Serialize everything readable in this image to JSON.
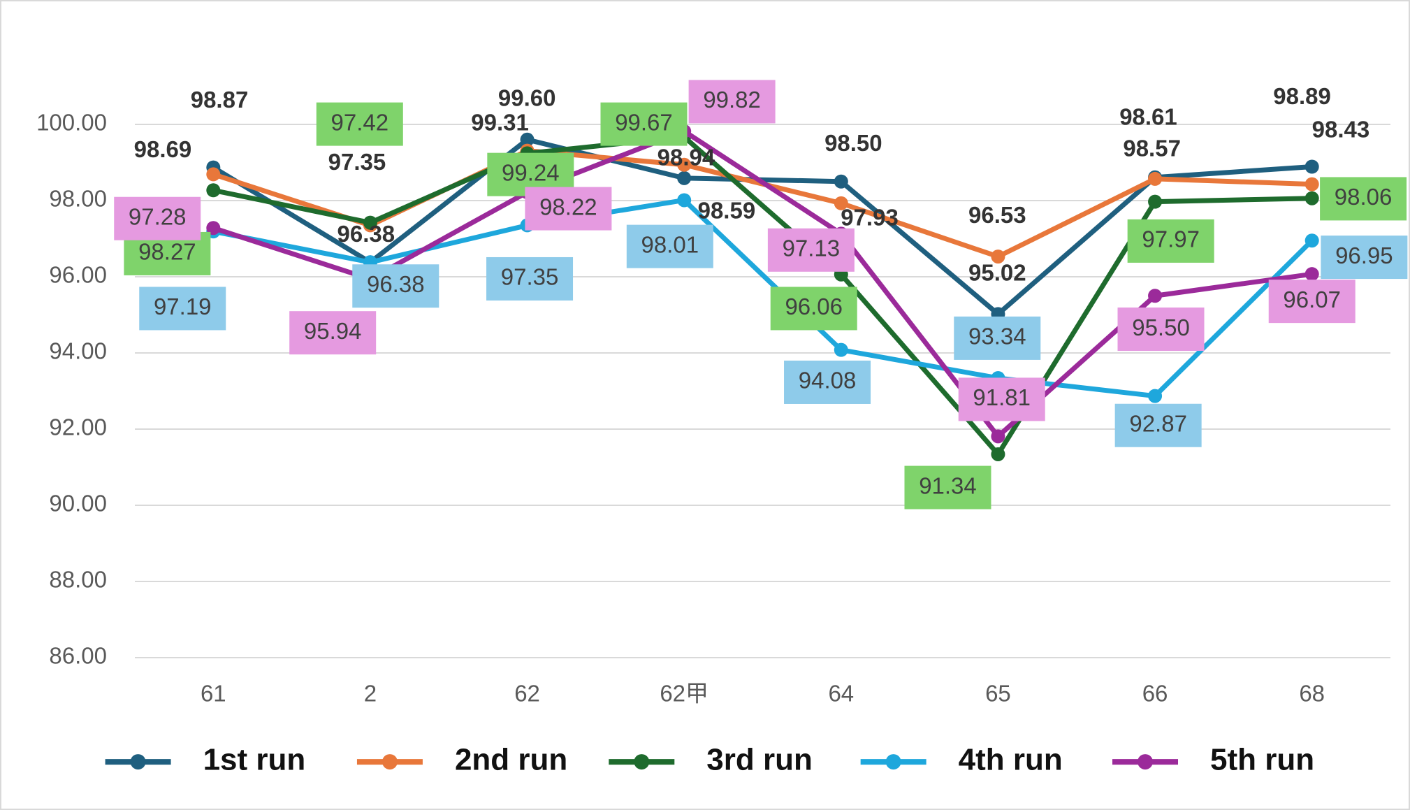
{
  "chart_data": {
    "type": "line",
    "categories": [
      "61",
      "2",
      "62",
      "62甲",
      "64",
      "65",
      "66",
      "68"
    ],
    "series": [
      {
        "name": "1st run",
        "color": "#1f5f7f",
        "values": [
          98.87,
          96.38,
          99.6,
          98.59,
          98.5,
          95.02,
          98.61,
          98.89
        ],
        "value_labels": [
          "98.87",
          "96.38",
          "99.60",
          "98.59",
          "98.50",
          "95.02",
          "98.61",
          "98.89"
        ]
      },
      {
        "name": "2nd run",
        "color": "#e8773a",
        "values": [
          98.69,
          97.35,
          99.31,
          98.94,
          97.93,
          96.53,
          98.57,
          98.43
        ],
        "value_labels": [
          "98.69",
          "97.35",
          "99.31",
          "98.94",
          "97.93",
          "96.53",
          "98.57",
          "98.43"
        ]
      },
      {
        "name": "3rd run",
        "color": "#1e6b2d",
        "label_box": "#7fd36b",
        "values": [
          98.27,
          97.42,
          99.24,
          99.67,
          96.06,
          91.34,
          97.97,
          98.06
        ],
        "value_labels": [
          "98.27",
          "97.42",
          "99.24",
          "99.67",
          "96.06",
          "91.34",
          "97.97",
          "98.06"
        ]
      },
      {
        "name": "4th run",
        "color": "#1ea7dc",
        "label_box": "#8ecbea",
        "values": [
          97.19,
          96.38,
          97.35,
          98.01,
          94.08,
          93.34,
          92.87,
          96.95
        ],
        "value_labels": [
          "97.19",
          "96.38",
          "97.35",
          "98.01",
          "94.08",
          "93.34",
          "92.87",
          "96.95"
        ]
      },
      {
        "name": "5th run",
        "color": "#9b2a9a",
        "label_box": "#e59ae0",
        "values": [
          97.28,
          95.94,
          98.22,
          99.82,
          97.13,
          91.81,
          95.5,
          96.07
        ],
        "value_labels": [
          "97.28",
          "95.94",
          "98.22",
          "99.82",
          "97.13",
          "91.81",
          "95.50",
          "96.07"
        ]
      }
    ],
    "ylim": [
      86,
      102
    ],
    "yticks": [
      {
        "value": 86,
        "label": "86.00"
      },
      {
        "value": 88,
        "label": "88.00"
      },
      {
        "value": 90,
        "label": "90.00"
      },
      {
        "value": 92,
        "label": "92.00"
      },
      {
        "value": 94,
        "label": "94.00"
      },
      {
        "value": 96,
        "label": "96.00"
      },
      {
        "value": 98,
        "label": "98.00"
      },
      {
        "value": 100,
        "label": "100.00"
      }
    ],
    "grid": true,
    "legend": "bottom"
  }
}
